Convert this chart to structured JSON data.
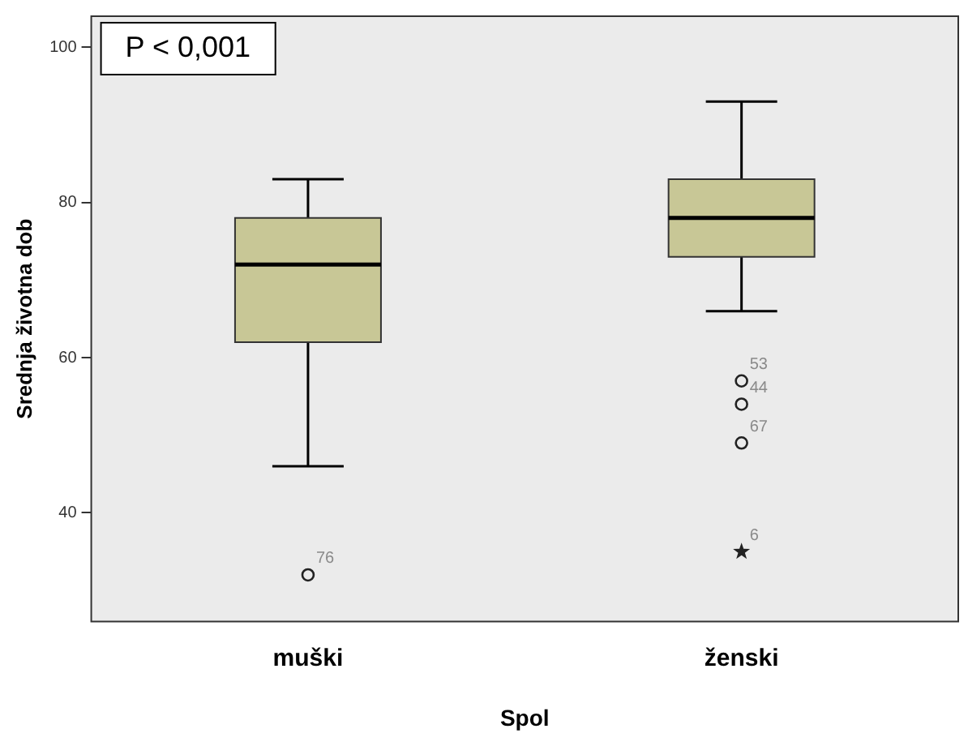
{
  "chart_data": {
    "type": "box",
    "xlabel": "Spol",
    "ylabel": "Srednja životna dob",
    "categories": [
      "muški",
      "ženski"
    ],
    "color": "#c8c796",
    "ylim": [
      26,
      104
    ],
    "yticks": [
      40,
      60,
      80,
      100
    ],
    "boxes": [
      {
        "low": 46,
        "q1": 62,
        "median": 72,
        "q3": 78,
        "high": 83,
        "outliers": [
          32
        ]
      },
      {
        "low": 66,
        "q1": 73,
        "median": 78,
        "q3": 83,
        "high": 93,
        "outliers": [
          57,
          54,
          49,
          35
        ]
      }
    ],
    "annotations": [
      "P < 0,001",
      "76",
      "53",
      "44",
      "67",
      "6"
    ]
  }
}
